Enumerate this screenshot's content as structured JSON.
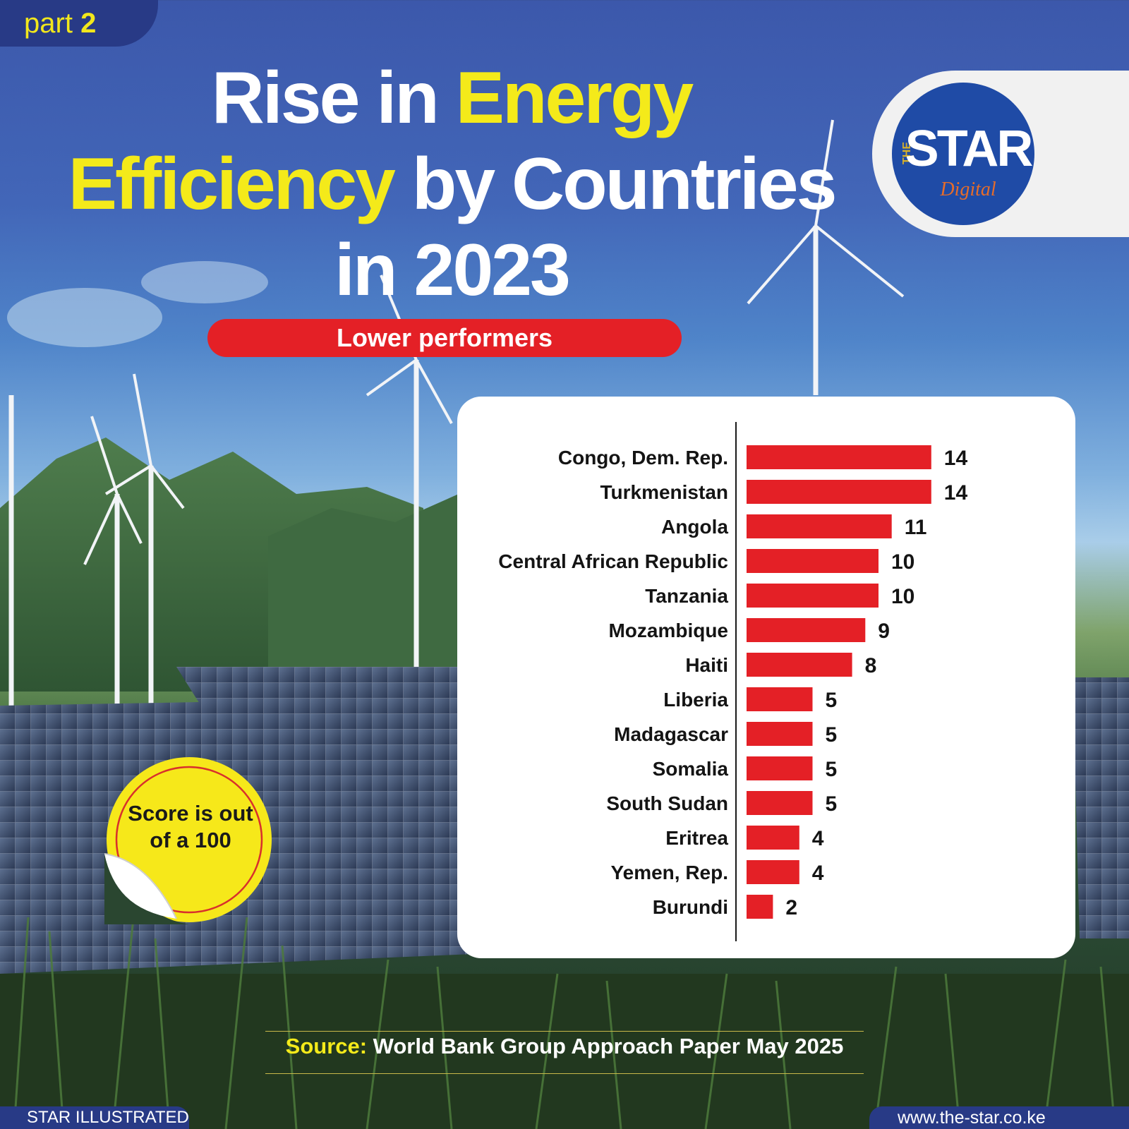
{
  "badge_top": {
    "part_word": "part",
    "part_number": "2"
  },
  "title": {
    "line1_plain": "Rise in ",
    "line1_highlight": "Energy",
    "line2_highlight": "Efficiency",
    "line2_plain": " by Countries",
    "line3": "in 2023"
  },
  "logo": {
    "the": "THE",
    "star": "STAR",
    "digital": "Digital"
  },
  "section_label": "Lower performers",
  "score_note": "Score is out of a 100",
  "source": {
    "label": "Source:",
    "text": " World Bank Group Approach Paper May 2025"
  },
  "footer": {
    "left": "STAR ILLUSTRATED",
    "right": "www.the-star.co.ke"
  },
  "colors": {
    "bar": "#e42026",
    "highlight": "#f4ea1a",
    "navy": "#283a86",
    "logo_blue": "#1f4ba6"
  },
  "chart_data": {
    "type": "bar",
    "orientation": "horizontal",
    "categories": [
      "Congo, Dem. Rep.",
      "Turkmenistan",
      "Angola",
      "Central African Republic",
      "Tanzania",
      "Mozambique",
      "Haiti",
      "Liberia",
      "Madagascar",
      "Somalia",
      "South Sudan",
      "Eritrea",
      "Yemen, Rep.",
      "Burundi"
    ],
    "values": [
      14,
      14,
      11,
      10,
      10,
      9,
      8,
      5,
      5,
      5,
      5,
      4,
      4,
      2
    ],
    "title": "",
    "xlabel": "",
    "ylabel": "",
    "xlim": [
      0,
      100
    ],
    "grid": false,
    "data_labels": true
  }
}
